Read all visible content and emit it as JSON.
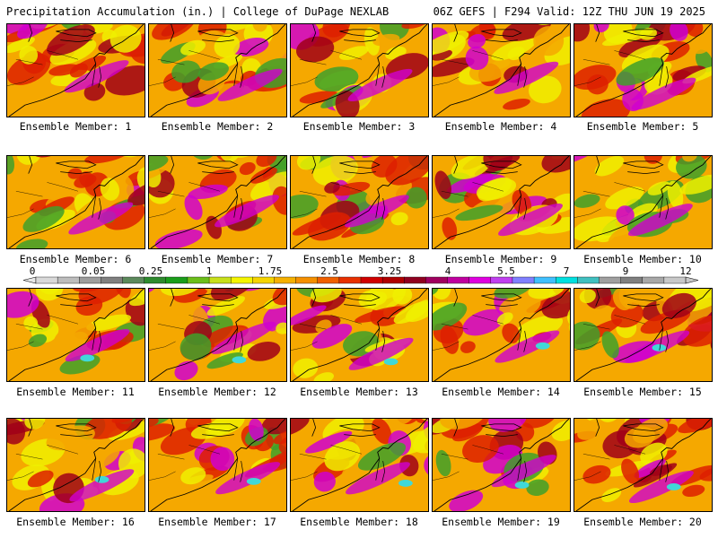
{
  "header": {
    "title": "Precipitation Accumulation (in.) | College of DuPage NEXLAB",
    "run_info": "06Z GEFS | F294 Valid: 12Z THU JUN 19 2025"
  },
  "panels": [
    {
      "label": "Ensemble Member: 1"
    },
    {
      "label": "Ensemble Member: 2"
    },
    {
      "label": "Ensemble Member: 3"
    },
    {
      "label": "Ensemble Member: 4"
    },
    {
      "label": "Ensemble Member: 5"
    },
    {
      "label": "Ensemble Member: 6"
    },
    {
      "label": "Ensemble Member: 7"
    },
    {
      "label": "Ensemble Member: 8"
    },
    {
      "label": "Ensemble Member: 9"
    },
    {
      "label": "Ensemble Member: 10"
    },
    {
      "label": "Ensemble Member: 11"
    },
    {
      "label": "Ensemble Member: 12"
    },
    {
      "label": "Ensemble Member: 13"
    },
    {
      "label": "Ensemble Member: 14"
    },
    {
      "label": "Ensemble Member: 15"
    },
    {
      "label": "Ensemble Member: 16"
    },
    {
      "label": "Ensemble Member: 17"
    },
    {
      "label": "Ensemble Member: 18"
    },
    {
      "label": "Ensemble Member: 19"
    },
    {
      "label": "Ensemble Member: 20"
    }
  ],
  "legend": {
    "tick_labels": [
      "0",
      "0.05",
      "0.25",
      "1",
      "1.75",
      "2.5",
      "3.25",
      "4",
      "5.5",
      "7",
      "9",
      "12"
    ],
    "colors": [
      "#d9d9d9",
      "#bdbdbd",
      "#9e9e9e",
      "#808080",
      "#5c8a5c",
      "#2e8b2e",
      "#1a9e1a",
      "#6cbf1a",
      "#c8e01a",
      "#f5f500",
      "#f5d400",
      "#f5b000",
      "#f59000",
      "#f06000",
      "#e83000",
      "#d00000",
      "#b00000",
      "#900020",
      "#a00060",
      "#c000a0",
      "#e000e0",
      "#c040f0",
      "#8080ff",
      "#40c0ff",
      "#00e0e0",
      "#40c0c0",
      "#a0a0a0",
      "#808080",
      "#a8a8a8",
      "#c8c8c8"
    ]
  },
  "map_colors": {
    "green": "#3fa02a",
    "yellow": "#f0f000",
    "orange": "#f5a800",
    "red": "#dd2000",
    "dark_red": "#a00018",
    "magenta": "#d000d0",
    "cyan": "#40d8d8",
    "coast": "#000000"
  }
}
